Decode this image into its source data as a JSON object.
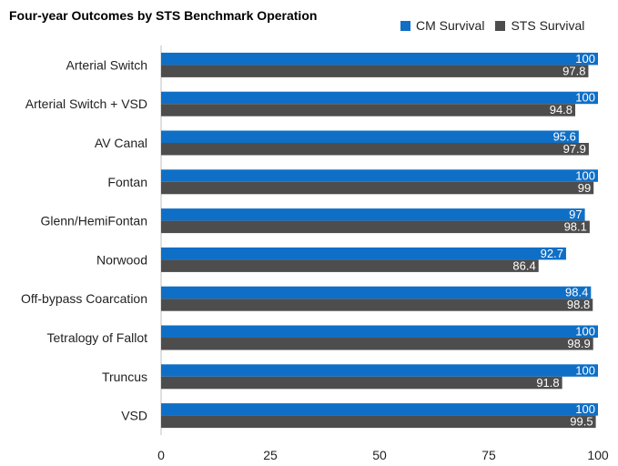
{
  "chart_data": {
    "type": "bar",
    "orientation": "horizontal",
    "title": "Four-year Outcomes by STS Benchmark Operation",
    "categories": [
      "Arterial Switch",
      "Arterial Switch + VSD",
      "AV Canal",
      "Fontan",
      "Glenn/HemiFontan",
      "Norwood",
      "Off-bypass Coarcation",
      "Tetralogy of Fallot",
      "Truncus",
      "VSD"
    ],
    "series": [
      {
        "name": "CM Survival",
        "color": "#0f6fc6",
        "values": [
          100,
          100,
          95.6,
          100,
          97,
          92.7,
          98.4,
          100,
          100,
          100
        ],
        "labels": [
          "100",
          "100",
          "95.6",
          "100",
          "97",
          "92.7",
          "98.4",
          "100",
          "100",
          "100"
        ]
      },
      {
        "name": "STS Survival",
        "color": "#4d4d4d",
        "values": [
          97.8,
          94.8,
          97.9,
          99,
          98.1,
          86.4,
          98.8,
          98.9,
          91.8,
          99.5
        ],
        "labels": [
          "97.8",
          "94.8",
          "97.9",
          "99",
          "98.1",
          "86.4",
          "98.8",
          "98.9",
          "91.8",
          "99.5"
        ]
      }
    ],
    "xlim": [
      0,
      100
    ],
    "xticks": [
      "0",
      "25",
      "50",
      "75",
      "100"
    ],
    "xlabel": "",
    "ylabel": "",
    "legend_position": "top-right",
    "grid": false
  }
}
